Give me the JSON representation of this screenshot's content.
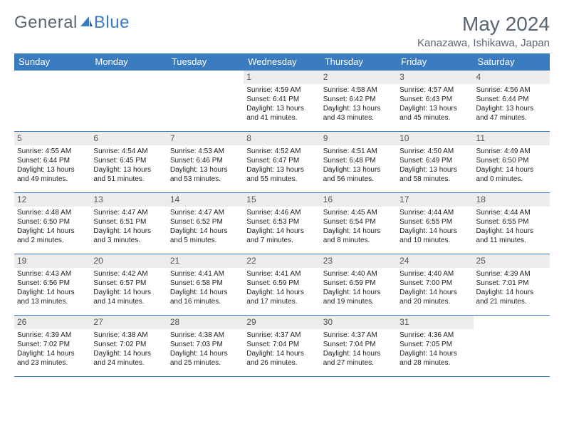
{
  "logo": {
    "partA": "General",
    "partB": "Blue"
  },
  "title": "May 2024",
  "location": "Kanazawa, Ishikawa, Japan",
  "colors": {
    "accent": "#3b7bbf",
    "text_muted": "#5a6673",
    "daynum_bg": "#ececec"
  },
  "weekdays": [
    "Sunday",
    "Monday",
    "Tuesday",
    "Wednesday",
    "Thursday",
    "Friday",
    "Saturday"
  ],
  "weeks": [
    [
      null,
      null,
      null,
      {
        "num": "1",
        "sunrise": "4:59 AM",
        "sunset": "6:41 PM",
        "daylight": "13 hours and 41 minutes."
      },
      {
        "num": "2",
        "sunrise": "4:58 AM",
        "sunset": "6:42 PM",
        "daylight": "13 hours and 43 minutes."
      },
      {
        "num": "3",
        "sunrise": "4:57 AM",
        "sunset": "6:43 PM",
        "daylight": "13 hours and 45 minutes."
      },
      {
        "num": "4",
        "sunrise": "4:56 AM",
        "sunset": "6:44 PM",
        "daylight": "13 hours and 47 minutes."
      }
    ],
    [
      {
        "num": "5",
        "sunrise": "4:55 AM",
        "sunset": "6:44 PM",
        "daylight": "13 hours and 49 minutes."
      },
      {
        "num": "6",
        "sunrise": "4:54 AM",
        "sunset": "6:45 PM",
        "daylight": "13 hours and 51 minutes."
      },
      {
        "num": "7",
        "sunrise": "4:53 AM",
        "sunset": "6:46 PM",
        "daylight": "13 hours and 53 minutes."
      },
      {
        "num": "8",
        "sunrise": "4:52 AM",
        "sunset": "6:47 PM",
        "daylight": "13 hours and 55 minutes."
      },
      {
        "num": "9",
        "sunrise": "4:51 AM",
        "sunset": "6:48 PM",
        "daylight": "13 hours and 56 minutes."
      },
      {
        "num": "10",
        "sunrise": "4:50 AM",
        "sunset": "6:49 PM",
        "daylight": "13 hours and 58 minutes."
      },
      {
        "num": "11",
        "sunrise": "4:49 AM",
        "sunset": "6:50 PM",
        "daylight": "14 hours and 0 minutes."
      }
    ],
    [
      {
        "num": "12",
        "sunrise": "4:48 AM",
        "sunset": "6:50 PM",
        "daylight": "14 hours and 2 minutes."
      },
      {
        "num": "13",
        "sunrise": "4:47 AM",
        "sunset": "6:51 PM",
        "daylight": "14 hours and 3 minutes."
      },
      {
        "num": "14",
        "sunrise": "4:47 AM",
        "sunset": "6:52 PM",
        "daylight": "14 hours and 5 minutes."
      },
      {
        "num": "15",
        "sunrise": "4:46 AM",
        "sunset": "6:53 PM",
        "daylight": "14 hours and 7 minutes."
      },
      {
        "num": "16",
        "sunrise": "4:45 AM",
        "sunset": "6:54 PM",
        "daylight": "14 hours and 8 minutes."
      },
      {
        "num": "17",
        "sunrise": "4:44 AM",
        "sunset": "6:55 PM",
        "daylight": "14 hours and 10 minutes."
      },
      {
        "num": "18",
        "sunrise": "4:44 AM",
        "sunset": "6:55 PM",
        "daylight": "14 hours and 11 minutes."
      }
    ],
    [
      {
        "num": "19",
        "sunrise": "4:43 AM",
        "sunset": "6:56 PM",
        "daylight": "14 hours and 13 minutes."
      },
      {
        "num": "20",
        "sunrise": "4:42 AM",
        "sunset": "6:57 PM",
        "daylight": "14 hours and 14 minutes."
      },
      {
        "num": "21",
        "sunrise": "4:41 AM",
        "sunset": "6:58 PM",
        "daylight": "14 hours and 16 minutes."
      },
      {
        "num": "22",
        "sunrise": "4:41 AM",
        "sunset": "6:59 PM",
        "daylight": "14 hours and 17 minutes."
      },
      {
        "num": "23",
        "sunrise": "4:40 AM",
        "sunset": "6:59 PM",
        "daylight": "14 hours and 19 minutes."
      },
      {
        "num": "24",
        "sunrise": "4:40 AM",
        "sunset": "7:00 PM",
        "daylight": "14 hours and 20 minutes."
      },
      {
        "num": "25",
        "sunrise": "4:39 AM",
        "sunset": "7:01 PM",
        "daylight": "14 hours and 21 minutes."
      }
    ],
    [
      {
        "num": "26",
        "sunrise": "4:39 AM",
        "sunset": "7:02 PM",
        "daylight": "14 hours and 23 minutes."
      },
      {
        "num": "27",
        "sunrise": "4:38 AM",
        "sunset": "7:02 PM",
        "daylight": "14 hours and 24 minutes."
      },
      {
        "num": "28",
        "sunrise": "4:38 AM",
        "sunset": "7:03 PM",
        "daylight": "14 hours and 25 minutes."
      },
      {
        "num": "29",
        "sunrise": "4:37 AM",
        "sunset": "7:04 PM",
        "daylight": "14 hours and 26 minutes."
      },
      {
        "num": "30",
        "sunrise": "4:37 AM",
        "sunset": "7:04 PM",
        "daylight": "14 hours and 27 minutes."
      },
      {
        "num": "31",
        "sunrise": "4:36 AM",
        "sunset": "7:05 PM",
        "daylight": "14 hours and 28 minutes."
      },
      null
    ]
  ],
  "labels": {
    "sunrise": "Sunrise:",
    "sunset": "Sunset:",
    "daylight": "Daylight:"
  }
}
